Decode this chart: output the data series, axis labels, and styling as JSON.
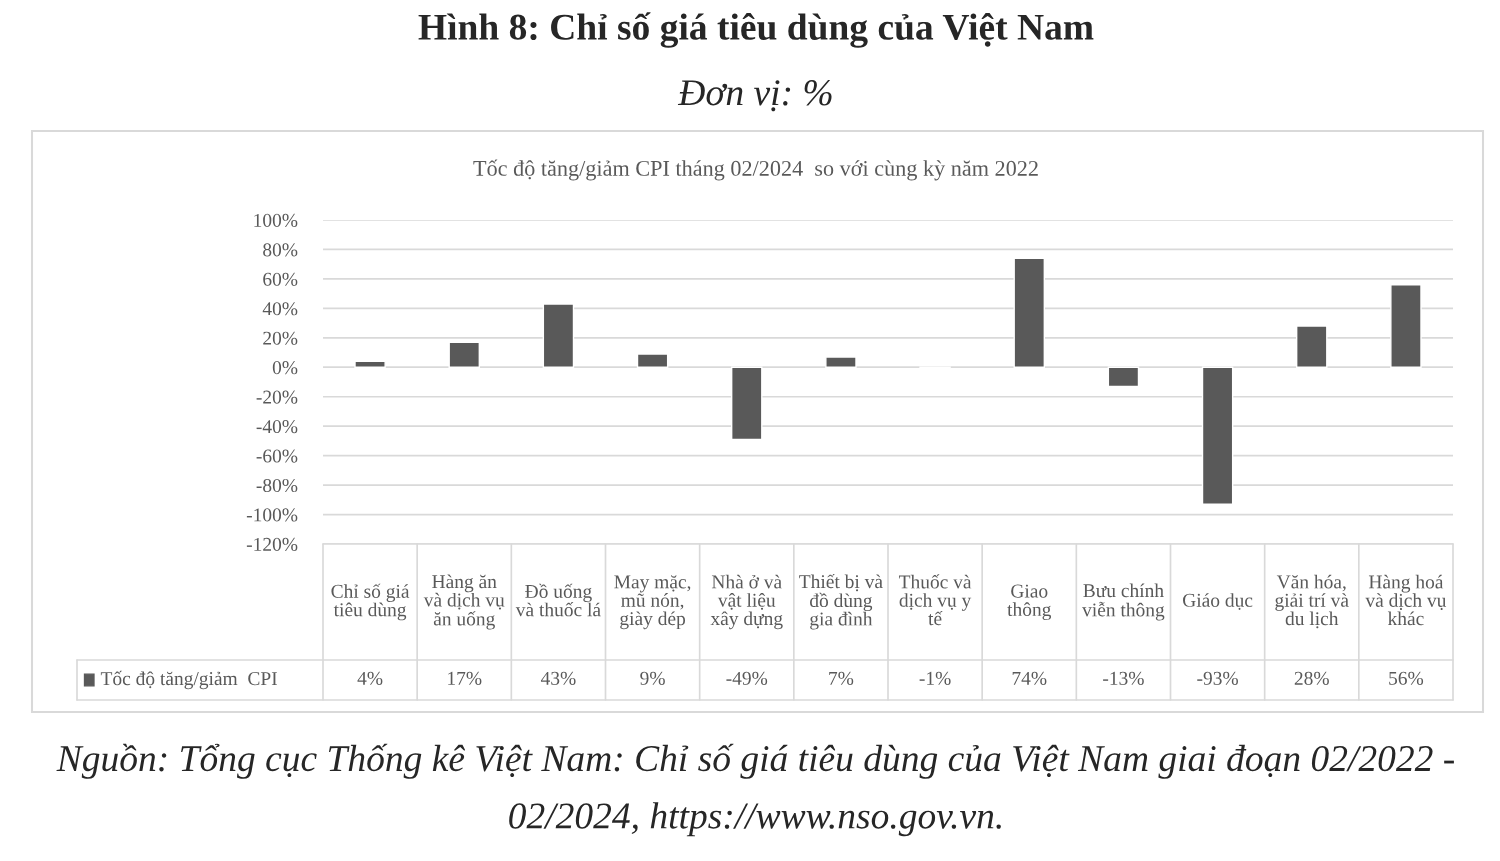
{
  "chart_data": {
    "type": "bar",
    "title": "Hình 8: Chỉ số giá tiêu dùng của Việt Nam",
    "subtitle": "Đơn vị: %",
    "xlabel": "Tốc độ tăng/giảm CPI tháng 02/2024  so với cùng kỳ năm 2022",
    "categories": [
      "Chỉ số giá tiêu dùng",
      "Hàng ăn và dịch vụ ăn uống",
      "Đồ uống và thuốc lá",
      "May mặc, mũ nón, giày dép",
      "Nhà ở và vật liệu xây dựng",
      "Thiết bị và đồ dùng gia đình",
      "Thuốc và dịch vụ y tế",
      "Giao thông",
      "Bưu chính viễn thông",
      "Giáo dục",
      "Văn hóa, giải trí và du lịch",
      "Hàng hoá và dịch vụ khác"
    ],
    "series": [
      {
        "name": "Tốc độ tăng/giảm  CPI",
        "color": "#595959",
        "values": [
          4,
          17,
          43,
          9,
          -49,
          7,
          -1,
          74,
          -13,
          -93,
          28,
          56
        ],
        "value_labels": [
          "4%",
          "17%",
          "43%",
          "9%",
          "-49%",
          "7%",
          "-1%",
          "74%",
          "-13%",
          "-93%",
          "28%",
          "56%"
        ]
      }
    ],
    "ylim": [
      -120,
      100
    ],
    "yticks": [
      {
        "value": 100,
        "label": "100%"
      },
      {
        "value": 80,
        "label": "80%"
      },
      {
        "value": 60,
        "label": "60%"
      },
      {
        "value": 40,
        "label": "40%"
      },
      {
        "value": 20,
        "label": "20%"
      },
      {
        "value": 0,
        "label": "0%"
      },
      {
        "value": -20,
        "label": "-20%"
      },
      {
        "value": -40,
        "label": "-40%"
      },
      {
        "value": -60,
        "label": "-60%"
      },
      {
        "value": -80,
        "label": "-80%"
      },
      {
        "value": -100,
        "label": "-100%"
      },
      {
        "value": -120,
        "label": "-120%"
      }
    ],
    "grid": "y",
    "legend": "bottom",
    "annotations": [
      "Nguồn: Tổng cục Thống kê Việt Nam: Chỉ số giá tiêu dùng của Việt Nam giai đoạn 02/2022 - 02/2024, https://www.nso.gov.vn."
    ]
  }
}
